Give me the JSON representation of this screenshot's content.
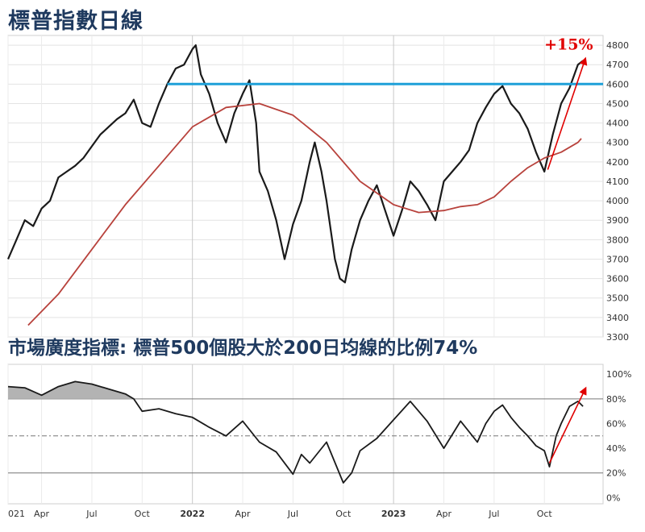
{
  "titles": {
    "main": "標普指數日線",
    "breadth": "市場廣度指標: 標普500個股大於200日均線的比例74%"
  },
  "chart_data": [
    {
      "type": "line",
      "title": "標普指數日線",
      "ylim": [
        3300,
        4850
      ],
      "y_ticks": [
        "3300",
        "3400",
        "3500",
        "3600",
        "3700",
        "3800",
        "3900",
        "4000",
        "4100",
        "4200",
        "4300",
        "4400",
        "4500",
        "4600",
        "4700",
        "4800"
      ],
      "x_ticks": [
        "021",
        "Apr",
        "Jul",
        "Oct",
        "2022",
        "Apr",
        "Jul",
        "Oct",
        "2023",
        "Apr",
        "Jul",
        "Oct"
      ],
      "x_tick_positions": [
        0,
        2,
        5,
        8,
        11,
        14,
        17,
        20,
        23,
        26,
        29,
        32
      ],
      "x_range_months": [
        0,
        35.5
      ],
      "grid": true,
      "series": [
        {
          "role": "price",
          "color": "#1a1a1a",
          "points": [
            [
              0,
              3700
            ],
            [
              0.5,
              3800
            ],
            [
              1,
              3900
            ],
            [
              1.5,
              3870
            ],
            [
              2,
              3960
            ],
            [
              2.5,
              4000
            ],
            [
              3,
              4120
            ],
            [
              3.5,
              4150
            ],
            [
              4,
              4180
            ],
            [
              4.5,
              4220
            ],
            [
              5,
              4280
            ],
            [
              5.5,
              4340
            ],
            [
              6,
              4380
            ],
            [
              6.5,
              4420
            ],
            [
              7,
              4450
            ],
            [
              7.5,
              4520
            ],
            [
              8,
              4400
            ],
            [
              8.5,
              4380
            ],
            [
              9,
              4500
            ],
            [
              9.5,
              4600
            ],
            [
              10,
              4680
            ],
            [
              10.5,
              4700
            ],
            [
              11,
              4780
            ],
            [
              11.2,
              4800
            ],
            [
              11.5,
              4650
            ],
            [
              12,
              4550
            ],
            [
              12.5,
              4400
            ],
            [
              13,
              4300
            ],
            [
              13.5,
              4450
            ],
            [
              14,
              4550
            ],
            [
              14.4,
              4620
            ],
            [
              14.8,
              4400
            ],
            [
              15,
              4150
            ],
            [
              15.5,
              4050
            ],
            [
              16,
              3900
            ],
            [
              16.5,
              3700
            ],
            [
              17,
              3880
            ],
            [
              17.5,
              4000
            ],
            [
              18,
              4200
            ],
            [
              18.3,
              4300
            ],
            [
              18.7,
              4150
            ],
            [
              19,
              4000
            ],
            [
              19.5,
              3700
            ],
            [
              19.8,
              3600
            ],
            [
              20.1,
              3580
            ],
            [
              20.5,
              3750
            ],
            [
              21,
              3900
            ],
            [
              21.5,
              4000
            ],
            [
              22,
              4080
            ],
            [
              22.5,
              3950
            ],
            [
              23,
              3820
            ],
            [
              23.5,
              3950
            ],
            [
              24,
              4100
            ],
            [
              24.5,
              4050
            ],
            [
              25,
              3980
            ],
            [
              25.5,
              3900
            ],
            [
              26,
              4100
            ],
            [
              26.5,
              4150
            ],
            [
              27,
              4200
            ],
            [
              27.5,
              4260
            ],
            [
              28,
              4400
            ],
            [
              28.5,
              4480
            ],
            [
              29,
              4550
            ],
            [
              29.5,
              4590
            ],
            [
              30,
              4500
            ],
            [
              30.5,
              4450
            ],
            [
              31,
              4370
            ],
            [
              31.5,
              4250
            ],
            [
              32,
              4150
            ],
            [
              32.5,
              4340
            ],
            [
              33,
              4500
            ],
            [
              33.5,
              4580
            ],
            [
              34,
              4700
            ],
            [
              34.3,
              4720
            ]
          ]
        },
        {
          "role": "200-day moving average",
          "color": "#b8423c",
          "points": [
            [
              1.2,
              3360
            ],
            [
              3,
              3520
            ],
            [
              5,
              3750
            ],
            [
              7,
              3980
            ],
            [
              9,
              4180
            ],
            [
              11,
              4380
            ],
            [
              13,
              4480
            ],
            [
              15,
              4500
            ],
            [
              17,
              4440
            ],
            [
              19,
              4300
            ],
            [
              21,
              4100
            ],
            [
              23,
              3980
            ],
            [
              24.5,
              3940
            ],
            [
              26,
              3950
            ],
            [
              27,
              3970
            ],
            [
              28,
              3980
            ],
            [
              29,
              4020
            ],
            [
              30,
              4100
            ],
            [
              31,
              4170
            ],
            [
              32,
              4220
            ],
            [
              33,
              4250
            ],
            [
              34,
              4300
            ],
            [
              34.2,
              4320
            ]
          ]
        },
        {
          "role": "resistance",
          "color": "#1ea0d8",
          "points": [
            [
              9.5,
              4600
            ],
            [
              35.5,
              4600
            ]
          ]
        }
      ],
      "annotations": [
        {
          "text": "+15%",
          "color": "#e00000",
          "from": [
            32.2,
            4160
          ],
          "to": [
            34.4,
            4720
          ]
        }
      ]
    },
    {
      "type": "area",
      "title": "市場廣度指標: 標普500個股大於200日均線的比例74%",
      "ylim": [
        -0.05,
        1.08
      ],
      "y_ticks": [
        "0%",
        "20%",
        "40%",
        "60%",
        "80%",
        "100%"
      ],
      "reference_lines": [
        0.2,
        0.5,
        0.8
      ],
      "x_ticks": [
        "021",
        "Apr",
        "Jul",
        "Oct",
        "2022",
        "Apr",
        "Jul",
        "Oct",
        "2023",
        "Apr",
        "Jul",
        "Oct"
      ],
      "series": [
        {
          "role": "percent above 200-day average",
          "color": "#1a1a1a",
          "fill_above": 0.8,
          "fill_color": "#b3b3b3",
          "points": [
            [
              0,
              0.9
            ],
            [
              1,
              0.89
            ],
            [
              2,
              0.83
            ],
            [
              3,
              0.9
            ],
            [
              4,
              0.94
            ],
            [
              5,
              0.92
            ],
            [
              6,
              0.88
            ],
            [
              7,
              0.84
            ],
            [
              7.5,
              0.8
            ],
            [
              8,
              0.7
            ],
            [
              9,
              0.72
            ],
            [
              10,
              0.68
            ],
            [
              11,
              0.65
            ],
            [
              12,
              0.57
            ],
            [
              13,
              0.5
            ],
            [
              14,
              0.62
            ],
            [
              15,
              0.45
            ],
            [
              16,
              0.37
            ],
            [
              17,
              0.19
            ],
            [
              17.5,
              0.35
            ],
            [
              18,
              0.28
            ],
            [
              19,
              0.45
            ],
            [
              20,
              0.12
            ],
            [
              20.5,
              0.2
            ],
            [
              21,
              0.38
            ],
            [
              22,
              0.48
            ],
            [
              23,
              0.63
            ],
            [
              24,
              0.78
            ],
            [
              25,
              0.62
            ],
            [
              26,
              0.4
            ],
            [
              27,
              0.62
            ],
            [
              28,
              0.45
            ],
            [
              28.5,
              0.6
            ],
            [
              29,
              0.7
            ],
            [
              29.5,
              0.75
            ],
            [
              30,
              0.65
            ],
            [
              30.5,
              0.57
            ],
            [
              31,
              0.5
            ],
            [
              31.5,
              0.42
            ],
            [
              32,
              0.38
            ],
            [
              32.3,
              0.25
            ],
            [
              32.7,
              0.5
            ],
            [
              33,
              0.6
            ],
            [
              33.5,
              0.74
            ],
            [
              34,
              0.78
            ],
            [
              34.3,
              0.74
            ]
          ]
        }
      ],
      "annotations": [
        {
          "text": "",
          "color": "#e00000",
          "from": [
            32.3,
            0.28
          ],
          "to": [
            34.4,
            0.87
          ]
        }
      ]
    }
  ]
}
